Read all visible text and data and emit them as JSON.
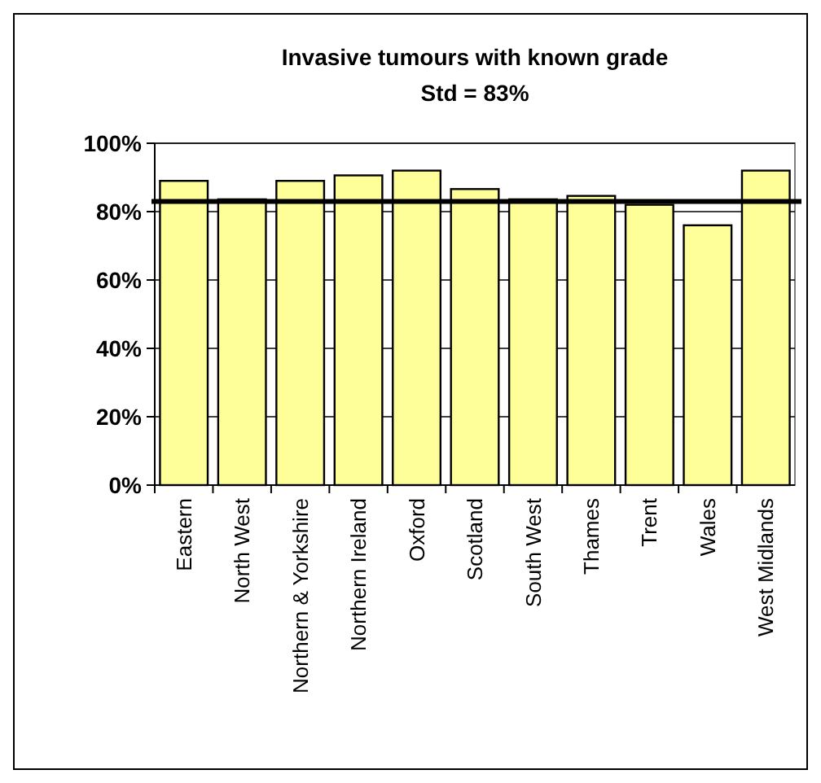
{
  "chart_data": {
    "type": "bar",
    "title": "Invasive tumours with known grade",
    "subtitle": "Std = 83%",
    "categories": [
      "Eastern",
      "North West",
      "Northern & Yorkshire",
      "Northern Ireland",
      "Oxford",
      "Scotland",
      "South West",
      "Thames",
      "Trent",
      "Wales",
      "West Midlands"
    ],
    "values": [
      89,
      83.6,
      89,
      90.6,
      92,
      86.6,
      83.6,
      84.6,
      82,
      76,
      92
    ],
    "color": "#ffff99",
    "ylim": [
      0,
      100
    ],
    "yticks": [
      {
        "value": 0,
        "label": "0%"
      },
      {
        "value": 20,
        "label": "20%"
      },
      {
        "value": 40,
        "label": "40%"
      },
      {
        "value": 60,
        "label": "60%"
      },
      {
        "value": 80,
        "label": "80%"
      },
      {
        "value": 100,
        "label": "100%"
      }
    ],
    "grid": "y",
    "ref_lines": [
      {
        "axis": "y",
        "value": 83,
        "color": "#000000"
      }
    ]
  }
}
